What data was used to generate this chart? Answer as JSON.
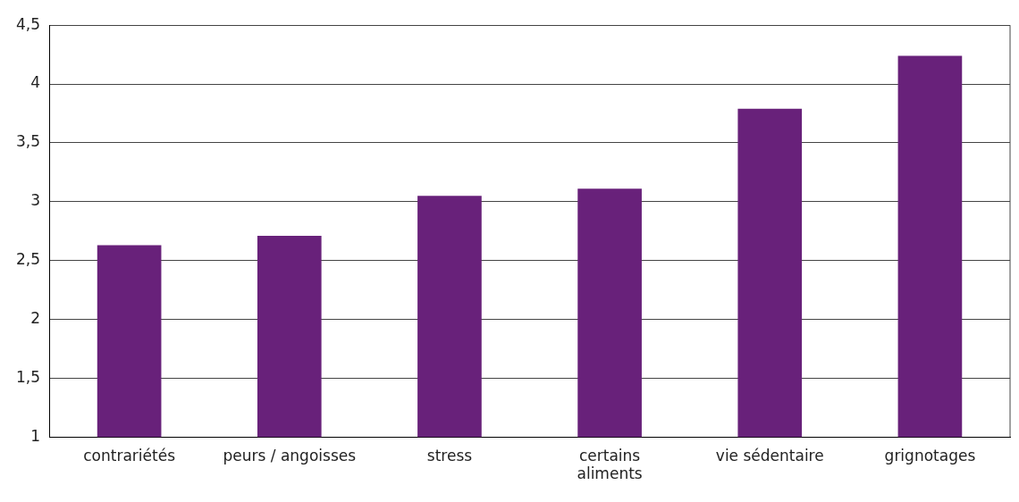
{
  "chart_data": {
    "type": "bar",
    "categories": [
      "contrariétés",
      "peurs / angoisses",
      "stress",
      "certains\naliments",
      "vie sédentaire",
      "grignotages"
    ],
    "values": [
      2.63,
      2.71,
      3.05,
      3.11,
      3.79,
      4.24
    ],
    "color": "#68217a",
    "ylim": [
      1,
      4.5
    ],
    "yticks": [
      1,
      {
        "value": 1.5,
        "label": "1,5"
      },
      2,
      {
        "value": 2.5,
        "label": "2,5"
      },
      3,
      {
        "value": 3.5,
        "label": "3,5"
      },
      4,
      {
        "value": 4.5,
        "label": "4,5"
      }
    ],
    "grid": "y"
  }
}
